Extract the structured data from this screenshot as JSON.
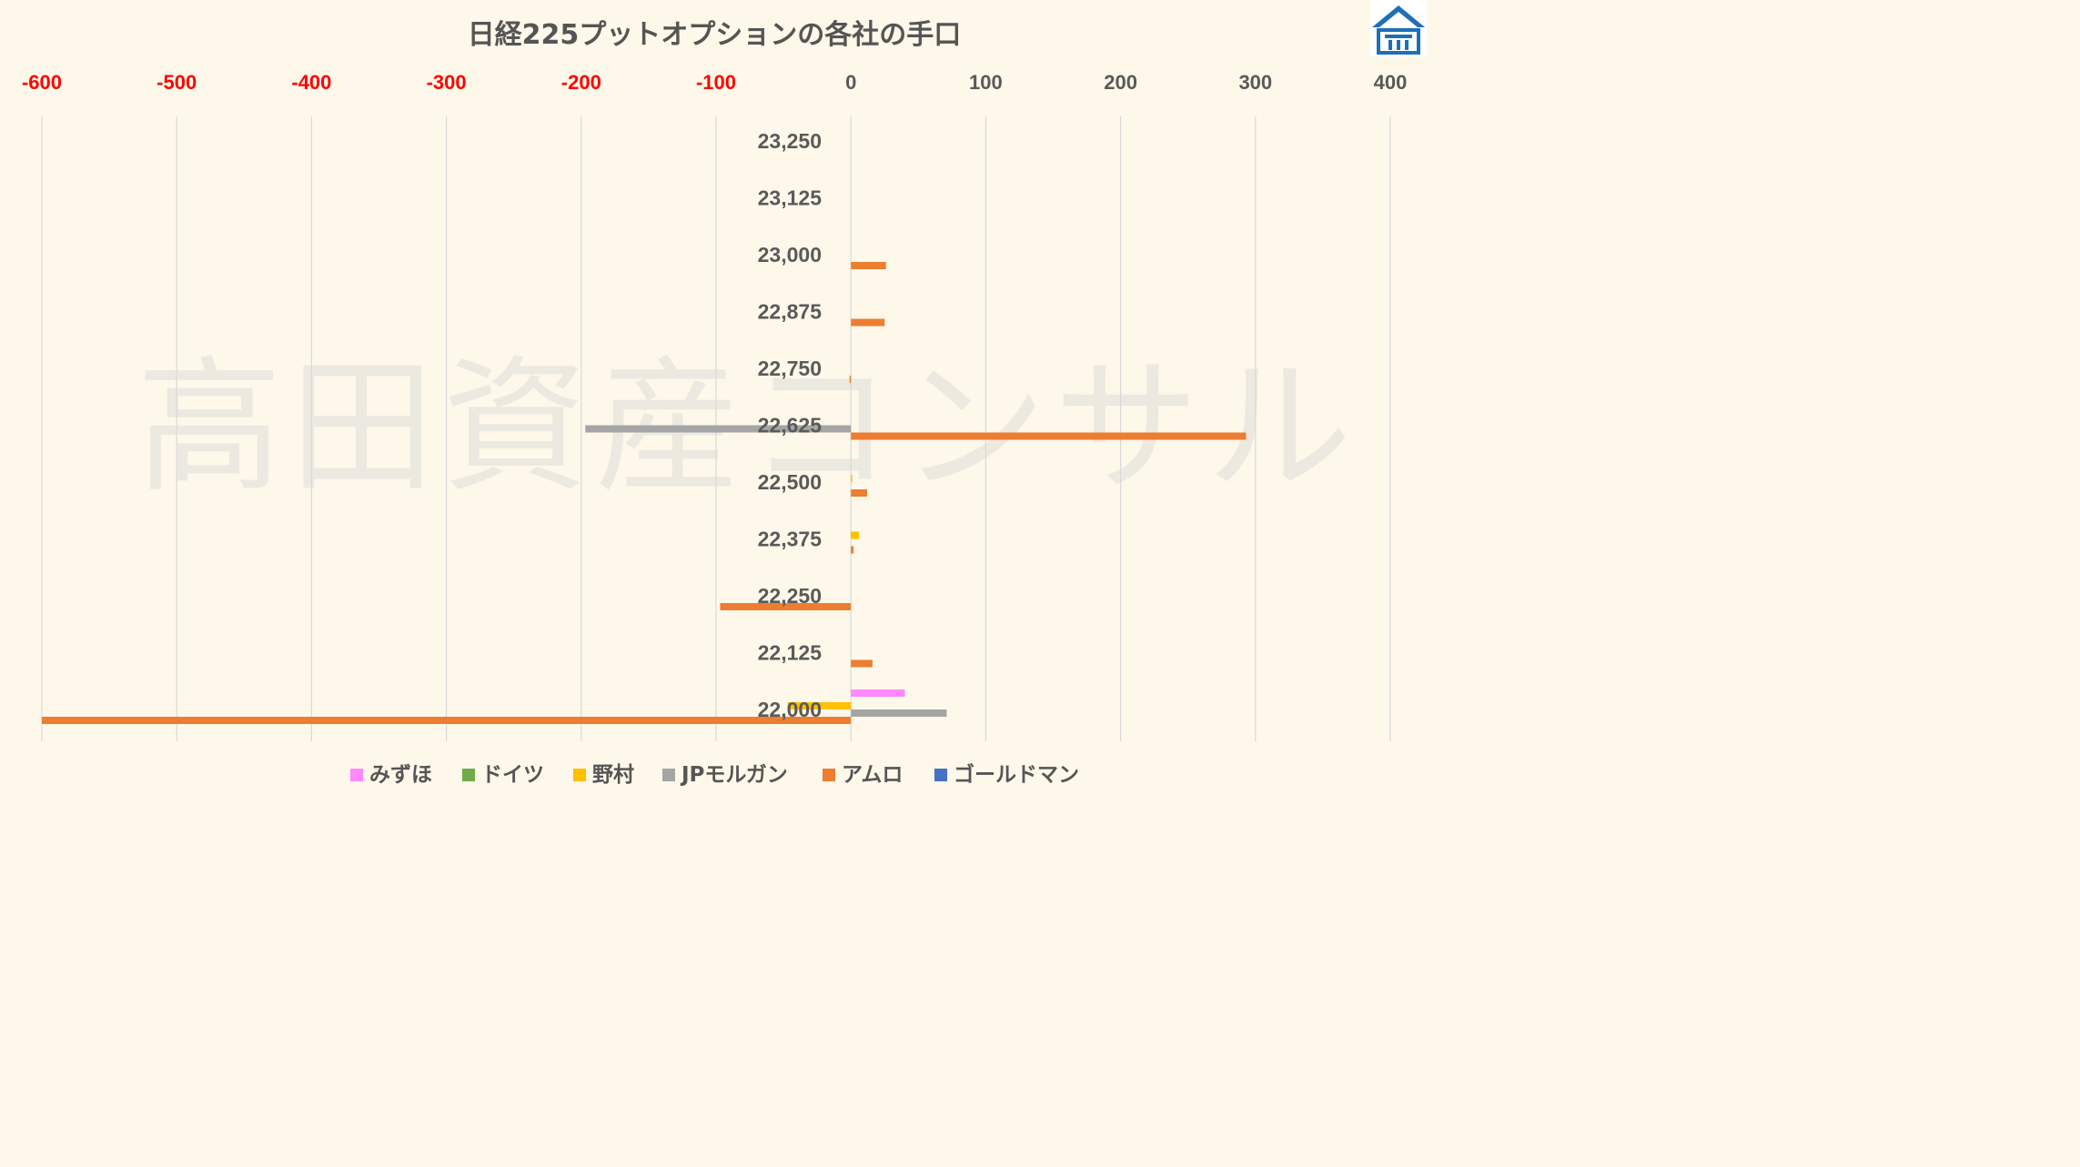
{
  "chart_data": {
    "type": "bar",
    "orientation": "horizontal",
    "title": "日経225プットオプションの各社の手口",
    "watermark": "高田資産コンサル",
    "categories": [
      "23,250",
      "23,125",
      "23,000",
      "22,875",
      "22,750",
      "22,625",
      "22,500",
      "22,375",
      "22,250",
      "22,125",
      "22,000"
    ],
    "xlim": [
      -600,
      400
    ],
    "ticks": [
      -600,
      -500,
      -400,
      -300,
      -200,
      -100,
      0,
      100,
      200,
      300,
      400
    ],
    "tick_labels": [
      "-600",
      "-500",
      "-400",
      "-300",
      "-200",
      "-100",
      "0",
      "100",
      "200",
      "300",
      "400"
    ],
    "negative_tick_color": "#ff0000",
    "positive_tick_color": "#595959",
    "grid": true,
    "legend_position": "bottom",
    "series": [
      {
        "name": "みずほ",
        "color": "#ff88ff",
        "values": [
          0,
          0,
          0,
          0,
          0,
          0,
          0,
          0,
          0,
          0,
          40
        ]
      },
      {
        "name": "ドイツ",
        "color": "#70ad47",
        "values": [
          0,
          0,
          0,
          0,
          0,
          0,
          0,
          0,
          0,
          0,
          0
        ]
      },
      {
        "name": "野村",
        "color": "#ffc000",
        "values": [
          0,
          0,
          0,
          0,
          0,
          0,
          1,
          6,
          0,
          0,
          -47
        ]
      },
      {
        "name": "JPモルガン",
        "color": "#a5a5a5",
        "values": [
          0,
          0,
          0,
          0,
          0,
          -197,
          0,
          0,
          0,
          0,
          71
        ]
      },
      {
        "name": "アムロ",
        "color": "#ed7d31",
        "values": [
          0,
          0,
          26,
          25,
          -1,
          293,
          12,
          2,
          -97,
          16,
          -600
        ]
      },
      {
        "name": "ゴールドマン",
        "color": "#4472c4",
        "values": [
          0,
          0,
          0,
          0,
          0,
          0,
          0,
          0,
          0,
          0,
          0
        ]
      }
    ]
  }
}
